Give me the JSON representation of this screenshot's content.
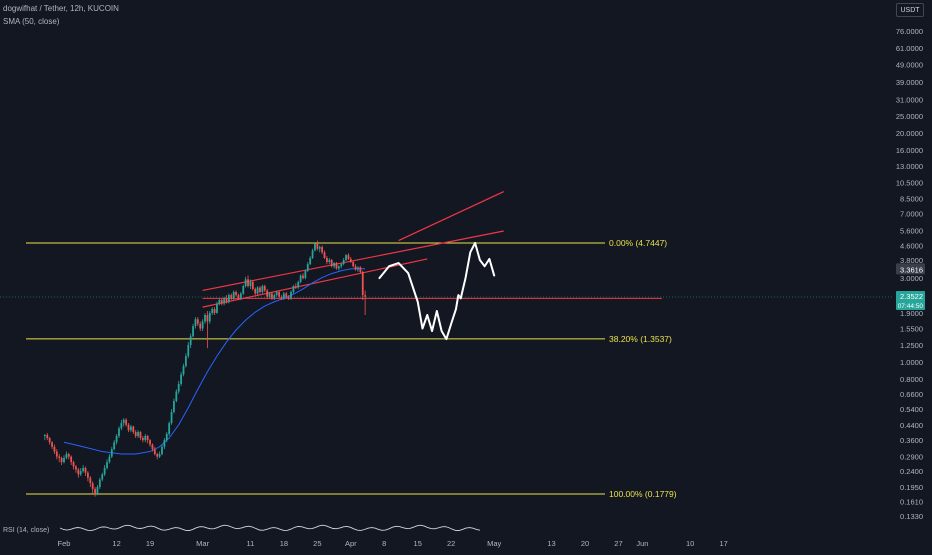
{
  "legend": {
    "symbol": "dogwifhat / Tether, 12h, KUCOIN",
    "indicator": "SMA (50, close)",
    "rsi": "RSI (14, close)"
  },
  "currency": "USDT",
  "colors": {
    "background": "#131722",
    "bull": "#26a69a",
    "bear": "#ef5350",
    "sma": "#2962ff",
    "fib": "#e8e24a",
    "channel": "#f23645",
    "drawing": "#ffffff",
    "axis_text": "#b2b5be",
    "current_price_tag": "#26a69a",
    "last_close_tag": "#3a3e4a"
  },
  "chart_data": {
    "type": "candlestick",
    "scale": "log",
    "y_ticks": [
      "76.0000",
      "61.0000",
      "49.0000",
      "39.0000",
      "31.0000",
      "25.0000",
      "20.0000",
      "16.0000",
      "13.0000",
      "10.5000",
      "8.5000",
      "7.0000",
      "5.6000",
      "4.6000",
      "3.8000",
      "3.0000",
      "2.4000",
      "1.9000",
      "1.5500",
      "1.2500",
      "1.0000",
      "0.8000",
      "0.6600",
      "0.5400",
      "0.4400",
      "0.3600",
      "0.2900",
      "0.2400",
      "0.1950",
      "0.1610",
      "0.1330"
    ],
    "y_tick_values": [
      76,
      61,
      49,
      39,
      31,
      25,
      20,
      16,
      13,
      10.5,
      8.5,
      7,
      5.6,
      4.6,
      3.8,
      3.0,
      2.4,
      1.9,
      1.55,
      1.25,
      1.0,
      0.8,
      0.66,
      0.54,
      0.44,
      0.36,
      0.29,
      0.24,
      0.195,
      0.161,
      0.133
    ],
    "x_ticks": [
      "Feb",
      "12",
      "19",
      "Mar",
      "11",
      "18",
      "25",
      "Apr",
      "8",
      "15",
      "22",
      "May",
      "13",
      "20",
      "27",
      "Jun",
      "10",
      "17"
    ],
    "x_tick_days": [
      0,
      11,
      18,
      29,
      39,
      46,
      53,
      60,
      67,
      74,
      81,
      90,
      102,
      109,
      116,
      121,
      131,
      138
    ],
    "current_price": "3.3616",
    "last_close": "2.3522",
    "countdown": "07:44:50",
    "fib_levels": [
      {
        "label": "0.00% (4.7447)",
        "price": 4.7447
      },
      {
        "label": "38.20% (1.3537)",
        "price": 1.3537
      },
      {
        "label": "100.00% (0.1779)",
        "price": 0.1779
      }
    ],
    "channel": {
      "lower_start": [
        29,
        2.05
      ],
      "lower_end": [
        76,
        3.85
      ],
      "upper_start": [
        29,
        2.55
      ],
      "upper_end": [
        92,
        5.55
      ],
      "projection_start": [
        70,
        4.9
      ],
      "projection_end": [
        92,
        9.3
      ]
    },
    "horizontal_level": 2.3,
    "candles": [
      [
        -4,
        0.38,
        0.385,
        0.39,
        0.36
      ],
      [
        -3.5,
        0.385,
        0.37,
        0.395,
        0.36
      ],
      [
        -3,
        0.37,
        0.35,
        0.375,
        0.34
      ],
      [
        -2.5,
        0.35,
        0.33,
        0.355,
        0.32
      ],
      [
        -2,
        0.33,
        0.31,
        0.34,
        0.3
      ],
      [
        -1.5,
        0.31,
        0.29,
        0.32,
        0.28
      ],
      [
        -1,
        0.29,
        0.285,
        0.3,
        0.27
      ],
      [
        -0.5,
        0.285,
        0.27,
        0.29,
        0.26
      ],
      [
        0,
        0.27,
        0.285,
        0.295,
        0.265
      ],
      [
        0.5,
        0.285,
        0.3,
        0.31,
        0.28
      ],
      [
        1,
        0.3,
        0.29,
        0.305,
        0.28
      ],
      [
        1.5,
        0.29,
        0.27,
        0.295,
        0.26
      ],
      [
        2,
        0.27,
        0.255,
        0.275,
        0.245
      ],
      [
        2.5,
        0.255,
        0.245,
        0.26,
        0.235
      ],
      [
        3,
        0.245,
        0.23,
        0.25,
        0.22
      ],
      [
        3.5,
        0.23,
        0.24,
        0.25,
        0.225
      ],
      [
        4,
        0.24,
        0.25,
        0.26,
        0.235
      ],
      [
        4.5,
        0.25,
        0.235,
        0.255,
        0.225
      ],
      [
        5,
        0.235,
        0.22,
        0.24,
        0.21
      ],
      [
        5.5,
        0.22,
        0.205,
        0.225,
        0.195
      ],
      [
        6,
        0.205,
        0.19,
        0.21,
        0.18
      ],
      [
        6.5,
        0.19,
        0.178,
        0.195,
        0.172
      ],
      [
        7,
        0.178,
        0.195,
        0.2,
        0.175
      ],
      [
        7.5,
        0.195,
        0.215,
        0.22,
        0.19
      ],
      [
        8,
        0.215,
        0.23,
        0.235,
        0.21
      ],
      [
        8.5,
        0.23,
        0.25,
        0.26,
        0.225
      ],
      [
        9,
        0.25,
        0.27,
        0.28,
        0.245
      ],
      [
        9.5,
        0.27,
        0.29,
        0.3,
        0.265
      ],
      [
        10,
        0.29,
        0.32,
        0.33,
        0.285
      ],
      [
        10.5,
        0.32,
        0.35,
        0.36,
        0.315
      ],
      [
        11,
        0.35,
        0.38,
        0.39,
        0.34
      ],
      [
        11.5,
        0.38,
        0.42,
        0.43,
        0.37
      ],
      [
        12,
        0.42,
        0.45,
        0.47,
        0.41
      ],
      [
        12.5,
        0.45,
        0.47,
        0.48,
        0.43
      ],
      [
        13,
        0.47,
        0.44,
        0.48,
        0.43
      ],
      [
        13.5,
        0.44,
        0.41,
        0.45,
        0.4
      ],
      [
        14,
        0.41,
        0.43,
        0.44,
        0.4
      ],
      [
        14.5,
        0.43,
        0.4,
        0.435,
        0.39
      ],
      [
        15,
        0.4,
        0.38,
        0.41,
        0.37
      ],
      [
        15.5,
        0.38,
        0.4,
        0.41,
        0.37
      ],
      [
        16,
        0.4,
        0.37,
        0.405,
        0.36
      ],
      [
        16.5,
        0.37,
        0.36,
        0.38,
        0.35
      ],
      [
        17,
        0.36,
        0.38,
        0.39,
        0.35
      ],
      [
        17.5,
        0.38,
        0.36,
        0.385,
        0.345
      ],
      [
        18,
        0.36,
        0.34,
        0.365,
        0.33
      ],
      [
        18.5,
        0.34,
        0.32,
        0.345,
        0.31
      ],
      [
        19,
        0.32,
        0.3,
        0.33,
        0.295
      ],
      [
        19.5,
        0.3,
        0.29,
        0.305,
        0.28
      ],
      [
        20,
        0.29,
        0.3,
        0.31,
        0.285
      ],
      [
        20.5,
        0.3,
        0.33,
        0.34,
        0.295
      ],
      [
        21,
        0.33,
        0.36,
        0.37,
        0.32
      ],
      [
        21.5,
        0.36,
        0.39,
        0.4,
        0.35
      ],
      [
        22,
        0.39,
        0.45,
        0.46,
        0.38
      ],
      [
        22.5,
        0.45,
        0.52,
        0.54,
        0.44
      ],
      [
        23,
        0.52,
        0.6,
        0.62,
        0.51
      ],
      [
        23.5,
        0.6,
        0.68,
        0.7,
        0.59
      ],
      [
        24,
        0.68,
        0.75,
        0.78,
        0.66
      ],
      [
        24.5,
        0.75,
        0.85,
        0.88,
        0.73
      ],
      [
        25,
        0.85,
        0.95,
        0.98,
        0.83
      ],
      [
        25.5,
        0.95,
        1.08,
        1.12,
        0.93
      ],
      [
        26,
        1.08,
        1.25,
        1.3,
        1.05
      ],
      [
        26.5,
        1.25,
        1.4,
        1.45,
        1.2
      ],
      [
        27,
        1.4,
        1.6,
        1.65,
        1.38
      ],
      [
        27.5,
        1.6,
        1.75,
        1.8,
        1.55
      ],
      [
        28,
        1.75,
        1.65,
        1.8,
        1.6
      ],
      [
        28.5,
        1.65,
        1.55,
        1.7,
        1.5
      ],
      [
        29,
        1.55,
        1.7,
        1.75,
        1.5
      ],
      [
        29.5,
        1.7,
        1.85,
        1.9,
        1.65
      ],
      [
        30,
        1.85,
        1.7,
        1.95,
        1.2
      ],
      [
        30.5,
        1.7,
        1.9,
        1.95,
        1.65
      ],
      [
        31,
        1.9,
        2.0,
        2.05,
        1.85
      ],
      [
        31.5,
        2.0,
        1.9,
        2.05,
        1.85
      ],
      [
        32,
        1.9,
        2.15,
        2.2,
        1.88
      ],
      [
        32.5,
        2.15,
        2.25,
        2.3,
        2.1
      ],
      [
        33,
        2.25,
        2.15,
        2.3,
        2.1
      ],
      [
        33.5,
        2.15,
        2.3,
        2.35,
        2.1
      ],
      [
        34,
        2.3,
        2.2,
        2.4,
        2.15
      ],
      [
        34.5,
        2.2,
        2.4,
        2.45,
        2.15
      ],
      [
        35,
        2.4,
        2.3,
        2.45,
        2.25
      ],
      [
        35.5,
        2.3,
        2.5,
        2.55,
        2.25
      ],
      [
        36,
        2.5,
        2.4,
        2.55,
        2.35
      ],
      [
        36.5,
        2.4,
        2.3,
        2.45,
        2.25
      ],
      [
        37,
        2.3,
        2.45,
        2.5,
        2.25
      ],
      [
        37.5,
        2.45,
        2.7,
        2.75,
        2.4
      ],
      [
        38,
        2.7,
        2.95,
        3.05,
        2.65
      ],
      [
        38.5,
        2.95,
        2.7,
        3.1,
        2.65
      ],
      [
        39,
        2.7,
        2.85,
        2.95,
        2.6
      ],
      [
        39.5,
        2.85,
        2.6,
        2.9,
        2.55
      ],
      [
        40,
        2.6,
        2.45,
        2.65,
        2.4
      ],
      [
        40.5,
        2.45,
        2.65,
        2.7,
        2.4
      ],
      [
        41,
        2.65,
        2.5,
        2.7,
        2.45
      ],
      [
        41.5,
        2.5,
        2.7,
        2.75,
        2.45
      ],
      [
        42,
        2.7,
        2.55,
        2.75,
        2.5
      ],
      [
        42.5,
        2.55,
        2.35,
        2.6,
        2.3
      ],
      [
        43,
        2.35,
        2.45,
        2.5,
        2.3
      ],
      [
        43.5,
        2.45,
        2.3,
        2.5,
        2.25
      ],
      [
        44,
        2.3,
        2.4,
        2.45,
        2.25
      ],
      [
        44.5,
        2.4,
        2.5,
        2.55,
        2.35
      ],
      [
        45,
        2.5,
        2.35,
        2.55,
        2.3
      ],
      [
        45.5,
        2.35,
        2.3,
        2.4,
        2.25
      ],
      [
        46,
        2.3,
        2.45,
        2.5,
        2.25
      ],
      [
        46.5,
        2.45,
        2.35,
        2.5,
        2.3
      ],
      [
        47,
        2.35,
        2.3,
        2.4,
        2.25
      ],
      [
        47.5,
        2.3,
        2.5,
        2.55,
        2.25
      ],
      [
        48,
        2.5,
        2.7,
        2.75,
        2.45
      ],
      [
        48.5,
        2.7,
        2.65,
        2.8,
        2.6
      ],
      [
        49,
        2.65,
        2.85,
        2.9,
        2.6
      ],
      [
        49.5,
        2.85,
        3.1,
        3.15,
        2.8
      ],
      [
        50,
        3.1,
        3.0,
        3.2,
        2.95
      ],
      [
        50.5,
        3.0,
        3.3,
        3.35,
        2.95
      ],
      [
        51,
        3.3,
        3.6,
        3.7,
        3.25
      ],
      [
        51.5,
        3.6,
        3.9,
        4.0,
        3.55
      ],
      [
        52,
        3.9,
        4.3,
        4.4,
        3.85
      ],
      [
        52.5,
        4.3,
        4.7,
        4.8,
        4.25
      ],
      [
        53,
        4.7,
        4.4,
        4.9,
        4.3
      ],
      [
        53.5,
        4.4,
        4.5,
        4.6,
        4.2
      ],
      [
        54,
        4.5,
        4.2,
        4.6,
        4.1
      ],
      [
        54.5,
        4.2,
        3.9,
        4.3,
        3.85
      ],
      [
        55,
        3.9,
        3.7,
        4.0,
        3.6
      ],
      [
        55.5,
        3.7,
        3.8,
        3.9,
        3.6
      ],
      [
        56,
        3.8,
        3.5,
        3.85,
        3.45
      ],
      [
        56.5,
        3.5,
        3.65,
        3.7,
        3.4
      ],
      [
        57,
        3.65,
        3.4,
        3.7,
        3.35
      ],
      [
        57.5,
        3.4,
        3.5,
        3.55,
        3.3
      ],
      [
        58,
        3.5,
        3.6,
        3.65,
        3.4
      ],
      [
        58.5,
        3.6,
        3.8,
        3.9,
        3.55
      ],
      [
        59,
        3.8,
        4.05,
        4.1,
        3.75
      ],
      [
        59.5,
        4.05,
        3.85,
        4.15,
        3.8
      ],
      [
        60,
        3.85,
        3.7,
        3.95,
        3.65
      ],
      [
        60.5,
        3.7,
        3.5,
        3.75,
        3.45
      ],
      [
        61,
        3.5,
        3.35,
        3.6,
        3.3
      ],
      [
        61.5,
        3.35,
        3.45,
        3.5,
        3.25
      ],
      [
        62,
        3.45,
        3.25,
        3.5,
        3.2
      ],
      [
        62.5,
        3.25,
        2.4,
        3.3,
        2.25
      ],
      [
        63,
        2.4,
        2.35,
        2.55,
        1.85
      ]
    ],
    "sma": [
      [
        0,
        0.35
      ],
      [
        4,
        0.33
      ],
      [
        8,
        0.31
      ],
      [
        12,
        0.3
      ],
      [
        15,
        0.3
      ],
      [
        18,
        0.31
      ],
      [
        20,
        0.33
      ],
      [
        22,
        0.37
      ],
      [
        24,
        0.44
      ],
      [
        26,
        0.55
      ],
      [
        28,
        0.7
      ],
      [
        30,
        0.88
      ],
      [
        32,
        1.08
      ],
      [
        34,
        1.3
      ],
      [
        36,
        1.52
      ],
      [
        38,
        1.73
      ],
      [
        40,
        1.92
      ],
      [
        42,
        2.08
      ],
      [
        44,
        2.2
      ],
      [
        46,
        2.3
      ],
      [
        48,
        2.43
      ],
      [
        50,
        2.6
      ],
      [
        52,
        2.82
      ],
      [
        54,
        3.02
      ],
      [
        56,
        3.18
      ],
      [
        58,
        3.3
      ],
      [
        60,
        3.38
      ],
      [
        62,
        3.4
      ],
      [
        63,
        3.38
      ]
    ],
    "projection_path": [
      [
        66,
        3.0
      ],
      [
        68,
        3.5
      ],
      [
        70,
        3.65
      ],
      [
        72,
        3.2
      ],
      [
        74,
        2.2
      ],
      [
        75,
        1.55
      ],
      [
        76,
        1.85
      ],
      [
        77,
        1.5
      ],
      [
        78,
        1.95
      ],
      [
        79,
        1.5
      ],
      [
        80,
        1.35
      ],
      [
        81,
        1.65
      ],
      [
        82,
        2.0
      ],
      [
        82.5,
        2.4
      ],
      [
        83,
        2.3
      ],
      [
        84,
        3.0
      ],
      [
        85,
        4.2
      ],
      [
        86,
        4.75
      ],
      [
        87,
        3.8
      ],
      [
        88,
        3.5
      ],
      [
        89,
        3.85
      ],
      [
        90,
        3.1
      ]
    ]
  }
}
